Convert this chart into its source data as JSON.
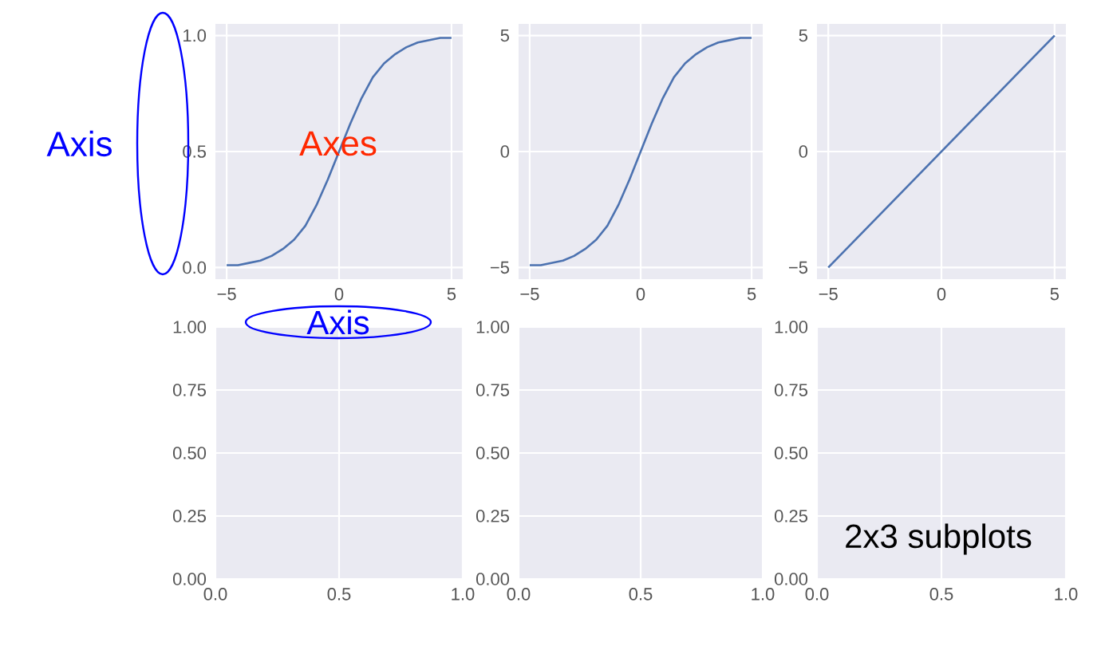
{
  "chart_data": [
    {
      "type": "line",
      "annotations": [
        "Axis",
        "Axes",
        "Axis",
        "2x3 subplots"
      ],
      "grid": true,
      "xlim": [
        -5.5,
        5.5
      ],
      "ylim": [
        -0.05,
        1.05
      ],
      "xticks": [
        {
          "value": -5,
          "label": "−5"
        },
        0,
        5
      ],
      "yticks": [
        {
          "value": 0,
          "label": "0.0"
        },
        {
          "value": 0.5,
          "label": "0.5"
        },
        {
          "value": 1,
          "label": "1.0"
        }
      ],
      "x": [
        -5,
        -4.5,
        -4,
        -3.5,
        -3,
        -2.5,
        -2,
        -1.5,
        -1,
        -0.5,
        0,
        0.5,
        1,
        1.5,
        2,
        2.5,
        3,
        3.5,
        4,
        4.5,
        5
      ],
      "series": [
        {
          "color": "#4c72b0",
          "values": [
            0.01,
            0.01,
            0.02,
            0.03,
            0.05,
            0.08,
            0.12,
            0.18,
            0.27,
            0.38,
            0.5,
            0.62,
            0.73,
            0.82,
            0.88,
            0.92,
            0.95,
            0.97,
            0.98,
            0.99,
            0.99
          ]
        }
      ]
    },
    {
      "type": "line",
      "grid": true,
      "xlim": [
        -5.5,
        5.5
      ],
      "ylim": [
        -5.5,
        5.5
      ],
      "xticks": [
        {
          "value": -5,
          "label": "−5"
        },
        0,
        5
      ],
      "yticks": [
        {
          "value": -5,
          "label": "−5"
        },
        0,
        5
      ],
      "x": [
        -5,
        -4.5,
        -4,
        -3.5,
        -3,
        -2.5,
        -2,
        -1.5,
        -1,
        -0.5,
        0,
        0.5,
        1,
        1.5,
        2,
        2.5,
        3,
        3.5,
        4,
        4.5,
        5
      ],
      "series": [
        {
          "color": "#4c72b0",
          "values": [
            -4.9,
            -4.9,
            -4.8,
            -4.7,
            -4.5,
            -4.2,
            -3.8,
            -3.2,
            -2.3,
            -1.2,
            0,
            1.2,
            2.3,
            3.2,
            3.8,
            4.2,
            4.5,
            4.7,
            4.8,
            4.9,
            4.9
          ]
        }
      ]
    },
    {
      "type": "line",
      "grid": true,
      "xlim": [
        -5.5,
        5.5
      ],
      "ylim": [
        -5.5,
        5.5
      ],
      "xticks": [
        {
          "value": -5,
          "label": "−5"
        },
        0,
        5
      ],
      "yticks": [
        {
          "value": -5,
          "label": "−5"
        },
        0,
        5
      ],
      "x": [
        -5,
        5
      ],
      "series": [
        {
          "color": "#4c72b0",
          "values": [
            -5,
            5
          ]
        }
      ]
    },
    {
      "type": "line",
      "grid": true,
      "xlim": [
        0,
        1
      ],
      "ylim": [
        0,
        1
      ],
      "xticks": [
        {
          "value": 0,
          "label": "0.0"
        },
        {
          "value": 0.5,
          "label": "0.5"
        },
        {
          "value": 1,
          "label": "1.0"
        }
      ],
      "yticks": [
        {
          "value": 0,
          "label": "0.00"
        },
        {
          "value": 0.25,
          "label": "0.25"
        },
        {
          "value": 0.5,
          "label": "0.50"
        },
        {
          "value": 0.75,
          "label": "0.75"
        },
        {
          "value": 1,
          "label": "1.00"
        }
      ]
    },
    {
      "type": "line",
      "grid": true,
      "xlim": [
        0,
        1
      ],
      "ylim": [
        0,
        1
      ],
      "xticks": [
        {
          "value": 0,
          "label": "0.0"
        },
        {
          "value": 0.5,
          "label": "0.5"
        },
        {
          "value": 1,
          "label": "1.0"
        }
      ],
      "yticks": [
        {
          "value": 0,
          "label": "0.00"
        },
        {
          "value": 0.25,
          "label": "0.25"
        },
        {
          "value": 0.5,
          "label": "0.50"
        },
        {
          "value": 0.75,
          "label": "0.75"
        },
        {
          "value": 1,
          "label": "1.00"
        }
      ]
    },
    {
      "type": "line",
      "grid": true,
      "xlim": [
        0,
        1
      ],
      "ylim": [
        0,
        1
      ],
      "xticks": [
        {
          "value": 0,
          "label": "0.0"
        },
        {
          "value": 0.5,
          "label": "0.5"
        },
        {
          "value": 1,
          "label": "1.0"
        }
      ],
      "yticks": [
        {
          "value": 0,
          "label": "0.00"
        },
        {
          "value": 0.25,
          "label": "0.25"
        },
        {
          "value": 0.5,
          "label": "0.50"
        },
        {
          "value": 0.75,
          "label": "0.75"
        },
        {
          "value": 1,
          "label": "1.00"
        }
      ]
    }
  ]
}
